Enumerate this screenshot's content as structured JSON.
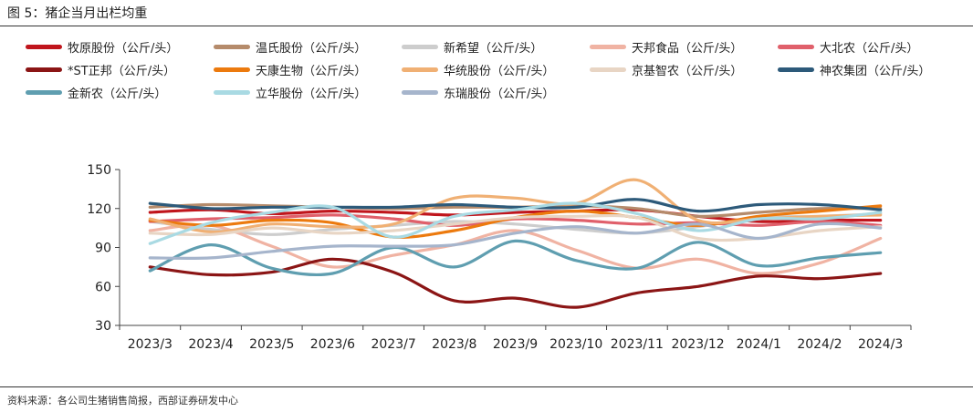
{
  "figure": {
    "title": "图 5：猪企当月出栏均重",
    "source": "资料来源：各公司生猪销售简报，西部证券研发中心"
  },
  "chart_data": {
    "type": "line",
    "categories": [
      "2023/3",
      "2023/4",
      "2023/5",
      "2023/6",
      "2023/7",
      "2023/8",
      "2023/9",
      "2023/10",
      "2023/11",
      "2023/12",
      "2024/1",
      "2024/2",
      "2024/3"
    ],
    "ylim": [
      30,
      150
    ],
    "yticks": [
      30,
      60,
      90,
      120,
      150
    ],
    "grid": false,
    "legend_position": "top",
    "series": [
      {
        "name": "牧原股份（公斤/头）",
        "color": "#c0151c",
        "values": [
          117,
          119,
          116,
          118,
          117,
          115,
          117,
          118,
          119,
          114,
          110,
          111,
          111
        ]
      },
      {
        "name": "温氏股份（公斤/头）",
        "color": "#b58b6b",
        "values": [
          121,
          123,
          122,
          121,
          120,
          121,
          121,
          122,
          120,
          114,
          117,
          120,
          120
        ]
      },
      {
        "name": "新希望（公斤/头）",
        "color": "#cdcdcd",
        "values": [
          110,
          104,
          100,
          104,
          107,
          110,
          108,
          104,
          101,
          106,
          113,
          114,
          116
        ]
      },
      {
        "name": "天邦食品（公斤/头）",
        "color": "#f0b3a3",
        "values": [
          103,
          107,
          91,
          75,
          84,
          92,
          103,
          88,
          74,
          81,
          70,
          78,
          97
        ]
      },
      {
        "name": "大北农（公斤/头）",
        "color": "#e0606b",
        "values": [
          110,
          112,
          113,
          115,
          112,
          107,
          112,
          111,
          108,
          109,
          107,
          110,
          107
        ]
      },
      {
        "name": "*ST正邦（公斤/头）",
        "color": "#8b1515",
        "values": [
          75,
          69,
          71,
          81,
          71,
          49,
          51,
          44,
          55,
          60,
          68,
          66,
          70
        ]
      },
      {
        "name": "天康生物（公斤/头）",
        "color": "#ec7a0e",
        "values": [
          111,
          107,
          111,
          109,
          98,
          103,
          113,
          118,
          113,
          107,
          114,
          118,
          122
        ]
      },
      {
        "name": "华统股份（公斤/头）",
        "color": "#f0b074",
        "values": [
          112,
          102,
          108,
          106,
          108,
          128,
          128,
          124,
          142,
          111,
          112,
          114,
          115
        ]
      },
      {
        "name": "京基智农（公斤/头）",
        "color": "#e8d5c4",
        "values": [
          101,
          100,
          105,
          101,
          103,
          108,
          113,
          114,
          113,
          97,
          97,
          103,
          106
        ]
      },
      {
        "name": "神农集团（公斤/头）",
        "color": "#2d5a7a",
        "values": [
          124,
          120,
          121,
          121,
          121,
          123,
          121,
          121,
          127,
          118,
          123,
          123,
          119
        ]
      },
      {
        "name": "金新农（公斤/头）",
        "color": "#5f9eb0",
        "values": [
          72,
          92,
          74,
          70,
          90,
          75,
          95,
          80,
          74,
          94,
          76,
          82,
          86
        ]
      },
      {
        "name": "立华股份（公斤/头）",
        "color": "#a9dae3",
        "values": [
          93,
          109,
          117,
          121,
          98,
          114,
          119,
          124,
          116,
          103,
          112,
          112,
          117
        ]
      },
      {
        "name": "东瑞股份（公斤/头）",
        "color": "#a6b5cc",
        "values": [
          82,
          82,
          87,
          91,
          91,
          92,
          101,
          106,
          101,
          108,
          97,
          108,
          105
        ]
      }
    ]
  }
}
